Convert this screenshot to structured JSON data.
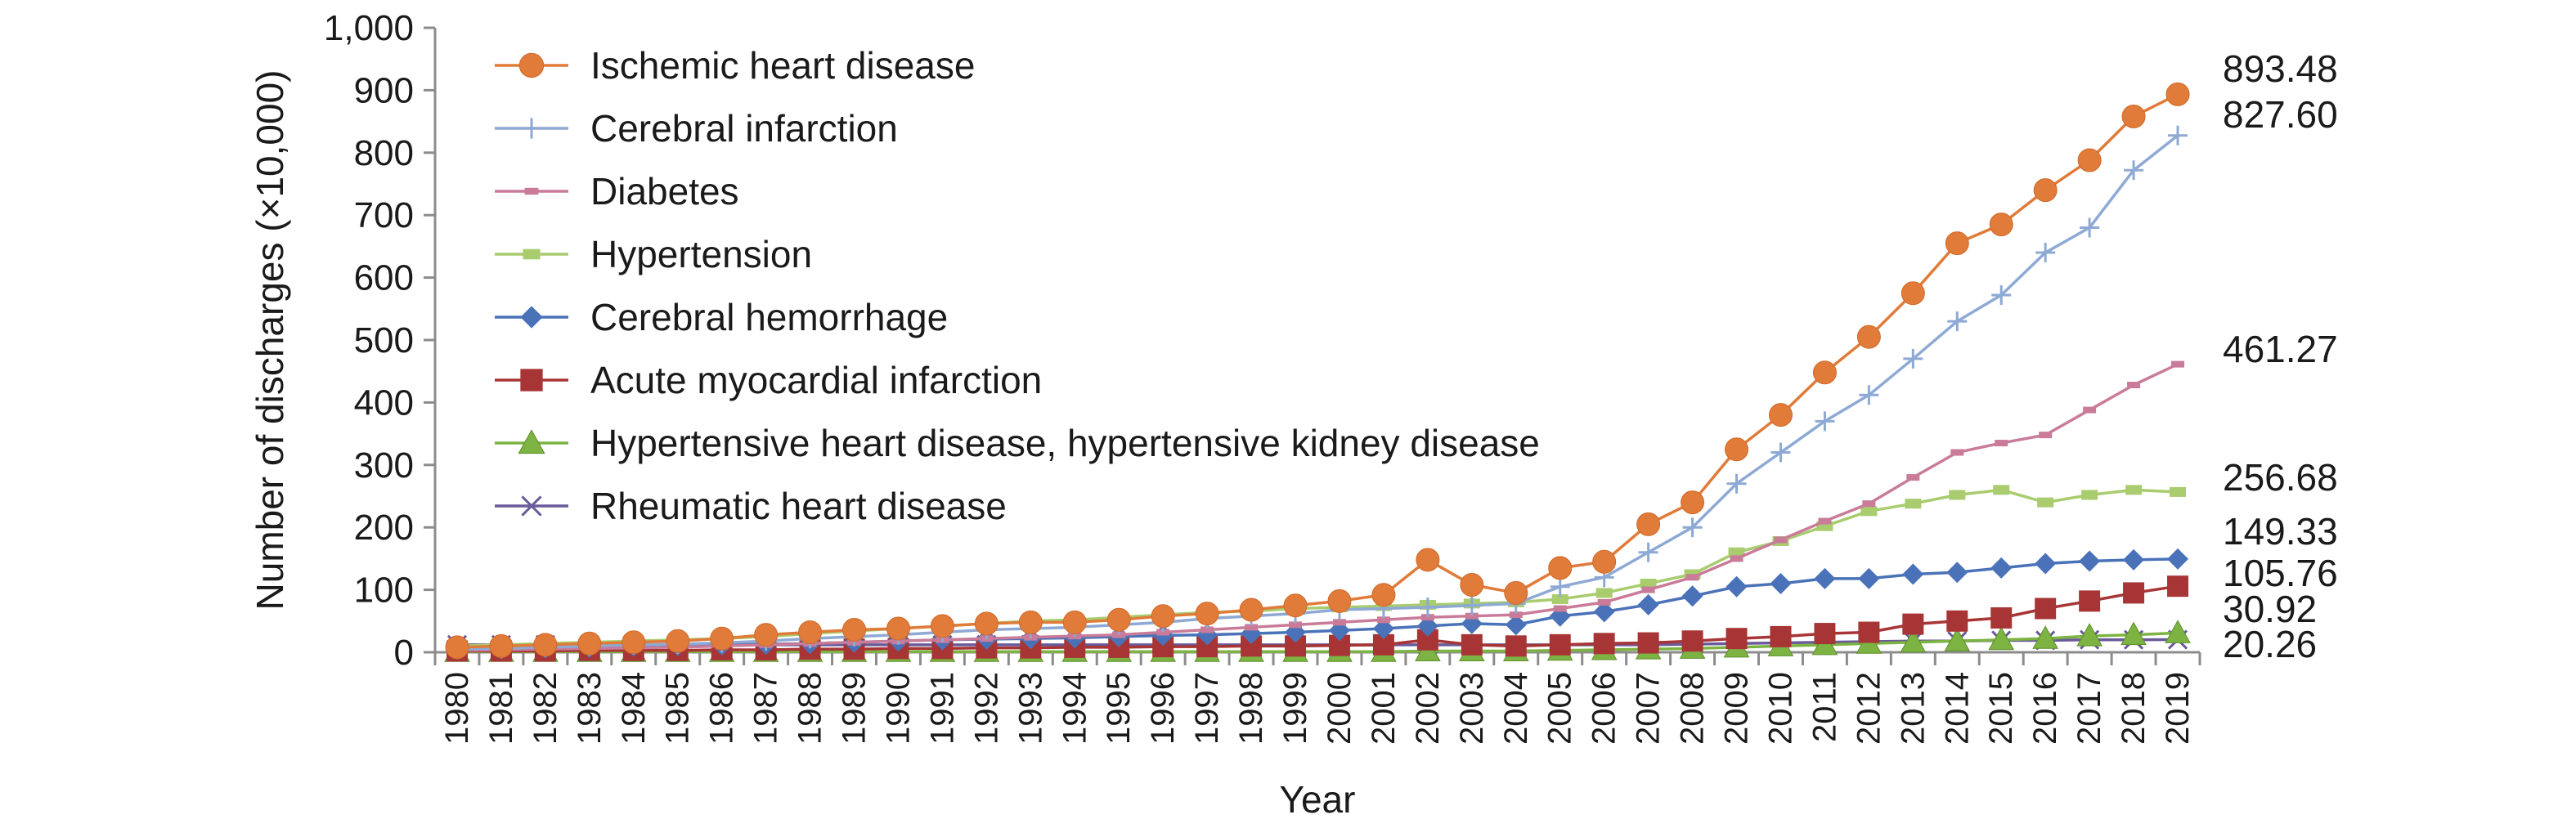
{
  "chart_data": {
    "type": "line",
    "xlabel": "Year",
    "ylabel": "Number of discharges (×10,000)",
    "ylim": [
      0,
      1000
    ],
    "y_ticks": [
      "0",
      "100",
      "200",
      "300",
      "400",
      "500",
      "600",
      "700",
      "800",
      "900",
      "1,000"
    ],
    "grid": false,
    "legend_position": "top-left",
    "x": [
      "1980",
      "1981",
      "1982",
      "1983",
      "1984",
      "1985",
      "1986",
      "1987",
      "1988",
      "1989",
      "1990",
      "1991",
      "1992",
      "1993",
      "1994",
      "1995",
      "1996",
      "1997",
      "1998",
      "1999",
      "2000",
      "2001",
      "2002",
      "2003",
      "2004",
      "2005",
      "2006",
      "2007",
      "2008",
      "2009",
      "2010",
      "2011",
      "2012",
      "2013",
      "2014",
      "2015",
      "2016",
      "2017",
      "2018",
      "2019"
    ],
    "series": [
      {
        "name": "Ischemic heart disease",
        "color": "#e07b39",
        "marker": "circle",
        "end_label": "893.48",
        "values": [
          8,
          10,
          12,
          14,
          16,
          18,
          22,
          28,
          32,
          36,
          38,
          42,
          46,
          48,
          48,
          52,
          58,
          62,
          68,
          75,
          82,
          92,
          148,
          108,
          95,
          135,
          145,
          205,
          240,
          325,
          380,
          448,
          505,
          575,
          655,
          685,
          740,
          788,
          858,
          893.48
        ]
      },
      {
        "name": "Cerebral infarction",
        "color": "#8ea9d4",
        "marker": "plus",
        "end_label": "827.60",
        "values": [
          5,
          6,
          8,
          10,
          12,
          13,
          15,
          18,
          22,
          25,
          28,
          32,
          36,
          38,
          40,
          44,
          48,
          54,
          58,
          62,
          68,
          70,
          72,
          75,
          78,
          105,
          120,
          160,
          200,
          270,
          320,
          370,
          412,
          470,
          530,
          572,
          640,
          680,
          772,
          827.6
        ]
      },
      {
        "name": "Diabetes",
        "color": "#c97b99",
        "marker": "dash",
        "end_label": "461.27",
        "values": [
          3,
          4,
          5,
          6,
          7,
          8,
          10,
          12,
          14,
          16,
          18,
          20,
          22,
          24,
          26,
          28,
          32,
          36,
          40,
          44,
          48,
          52,
          56,
          58,
          60,
          70,
          80,
          100,
          120,
          150,
          180,
          210,
          238,
          280,
          320,
          335,
          348,
          388,
          428,
          461.27
        ]
      },
      {
        "name": "Hypertension",
        "color": "#a8cc6e",
        "marker": "square-small",
        "end_label": "256.68",
        "values": [
          10,
          12,
          14,
          16,
          18,
          20,
          22,
          25,
          30,
          34,
          38,
          42,
          46,
          50,
          52,
          56,
          60,
          64,
          66,
          70,
          72,
          74,
          76,
          78,
          80,
          85,
          95,
          110,
          125,
          160,
          178,
          202,
          226,
          238,
          252,
          260,
          240,
          252,
          260,
          256.68
        ]
      },
      {
        "name": "Cerebral hemorrhage",
        "color": "#4a72b8",
        "marker": "diamond",
        "end_label": "149.33",
        "values": [
          5,
          6,
          7,
          8,
          10,
          11,
          12,
          13,
          14,
          16,
          18,
          20,
          21,
          22,
          23,
          25,
          27,
          28,
          30,
          32,
          35,
          38,
          42,
          46,
          44,
          58,
          65,
          76,
          90,
          105,
          110,
          118,
          118,
          125,
          128,
          135,
          142,
          146,
          148,
          149.33
        ]
      },
      {
        "name": "Acute myocardial infarction",
        "color": "#a83535",
        "marker": "square",
        "end_label": "105.76",
        "values": [
          2,
          2,
          2,
          3,
          3,
          3,
          4,
          4,
          5,
          5,
          6,
          6,
          7,
          7,
          8,
          8,
          9,
          9,
          10,
          10,
          11,
          12,
          20,
          12,
          10,
          12,
          14,
          15,
          18,
          22,
          25,
          30,
          32,
          45,
          50,
          55,
          70,
          82,
          95,
          105.76
        ]
      },
      {
        "name": "Hypertensive heart disease, hypertensive kidney disease",
        "color": "#7cb342",
        "marker": "triangle",
        "end_label": "30.92",
        "values": [
          1,
          1,
          1,
          1,
          1,
          1,
          1,
          1,
          1,
          1,
          1,
          1,
          1,
          1,
          1,
          1,
          1,
          1,
          1,
          1,
          1,
          1,
          2,
          2,
          2,
          3,
          4,
          5,
          6,
          8,
          10,
          12,
          14,
          16,
          18,
          20,
          22,
          26,
          28,
          30.92
        ]
      },
      {
        "name": "Rheumatic heart disease",
        "color": "#6a5a9a",
        "marker": "x",
        "end_label": "20.26",
        "values": [
          12,
          12,
          12,
          12,
          12,
          12,
          12,
          12,
          12,
          12,
          12,
          12,
          12,
          12,
          12,
          12,
          12,
          12,
          12,
          12,
          12,
          12,
          12,
          12,
          12,
          12,
          12,
          12,
          13,
          14,
          15,
          16,
          17,
          18,
          18,
          19,
          19,
          20,
          20,
          20.26
        ]
      }
    ]
  }
}
